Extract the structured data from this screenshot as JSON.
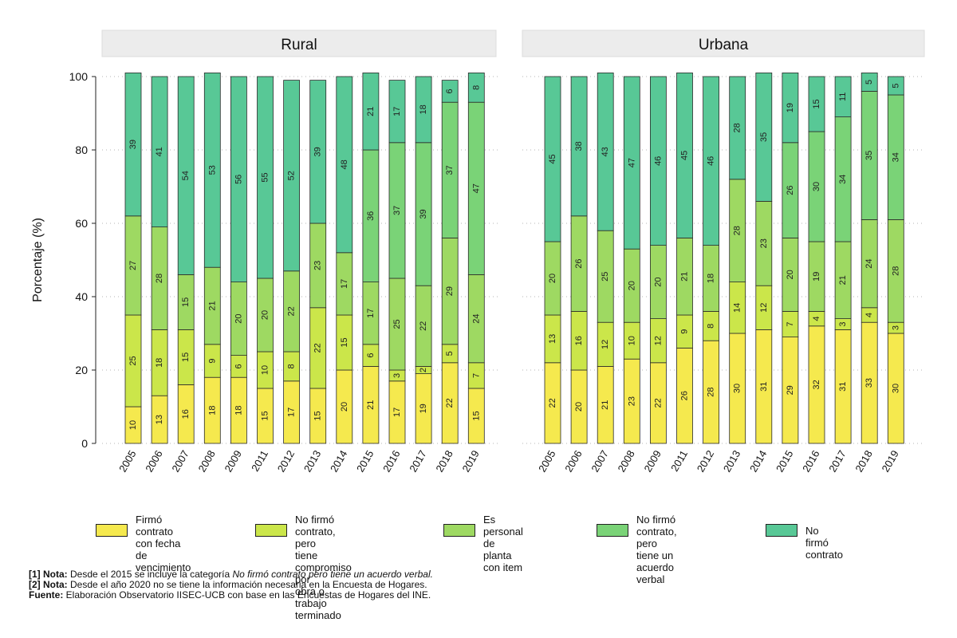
{
  "chart_data": {
    "type": "stacked-bar",
    "ylabel": "Porcentaje (%)",
    "ylim": [
      0,
      100
    ],
    "yticks": [
      "0",
      "20",
      "40",
      "60",
      "80",
      "100"
    ],
    "colors": [
      "#f5e94e",
      "#cbe64a",
      "#9ed962",
      "#7ad377",
      "#58c896"
    ],
    "series_names": [
      "Firmó contrato\ncon fecha de\nvencimiento",
      "No firmó contrato, pero\ntiene compromiso por\nobra o trabajo terminado",
      "Es personal de\nplanta con item",
      "No firmó contrato,\npero tiene un\nacuerdo verbal",
      "No firmó contrato"
    ],
    "panels": [
      {
        "title": "Rural",
        "years": [
          "2005",
          "2006",
          "2007",
          "2008",
          "2009",
          "2011",
          "2012",
          "2013",
          "2014",
          "2015",
          "2016",
          "2017",
          "2018",
          "2019"
        ],
        "segments": [
          [
            10,
            25,
            27,
            0,
            39
          ],
          [
            13,
            18,
            28,
            0,
            41
          ],
          [
            16,
            15,
            15,
            0,
            54
          ],
          [
            18,
            9,
            21,
            0,
            53
          ],
          [
            18,
            6,
            20,
            0,
            56
          ],
          [
            15,
            10,
            20,
            0,
            55
          ],
          [
            17,
            8,
            22,
            0,
            52
          ],
          [
            15,
            22,
            23,
            0,
            39
          ],
          [
            20,
            15,
            17,
            0,
            48
          ],
          [
            21,
            6,
            17,
            36,
            21
          ],
          [
            17,
            3,
            25,
            37,
            17
          ],
          [
            19,
            2,
            22,
            39,
            18
          ],
          [
            22,
            5,
            29,
            37,
            6
          ],
          [
            15,
            7,
            24,
            47,
            8
          ]
        ]
      },
      {
        "title": "Urbana",
        "years": [
          "2005",
          "2006",
          "2007",
          "2008",
          "2009",
          "2011",
          "2012",
          "2013",
          "2014",
          "2015",
          "2016",
          "2017",
          "2018",
          "2019"
        ],
        "segments": [
          [
            22,
            13,
            20,
            0,
            45
          ],
          [
            20,
            16,
            26,
            0,
            38
          ],
          [
            21,
            12,
            25,
            0,
            43
          ],
          [
            23,
            10,
            20,
            0,
            47
          ],
          [
            22,
            12,
            20,
            0,
            46
          ],
          [
            26,
            9,
            21,
            0,
            45
          ],
          [
            28,
            8,
            18,
            0,
            46
          ],
          [
            30,
            14,
            28,
            0,
            28
          ],
          [
            31,
            12,
            23,
            0,
            35
          ],
          [
            29,
            7,
            20,
            26,
            19
          ],
          [
            32,
            4,
            19,
            30,
            15
          ],
          [
            31,
            3,
            21,
            34,
            11
          ],
          [
            33,
            4,
            24,
            35,
            5
          ],
          [
            30,
            3,
            28,
            34,
            5
          ]
        ]
      }
    ]
  },
  "notes": {
    "note1_tag": "[1] Nota:",
    "note1_text": " Desde el 2015 se incluye la categoría ",
    "note1_italic": "No firmó contrato pero tiene un acuerdo verbal.",
    "note2_tag": "[2] Nota:",
    "note2_text": " Desde el año 2020 no se tiene la información necesaria en la Encuesta de Hogares.",
    "source_tag": "Fuente:",
    "source_text": " Elaboración Observatorio IISEC-UCB con base en las Encuestas de Hogares del INE."
  }
}
